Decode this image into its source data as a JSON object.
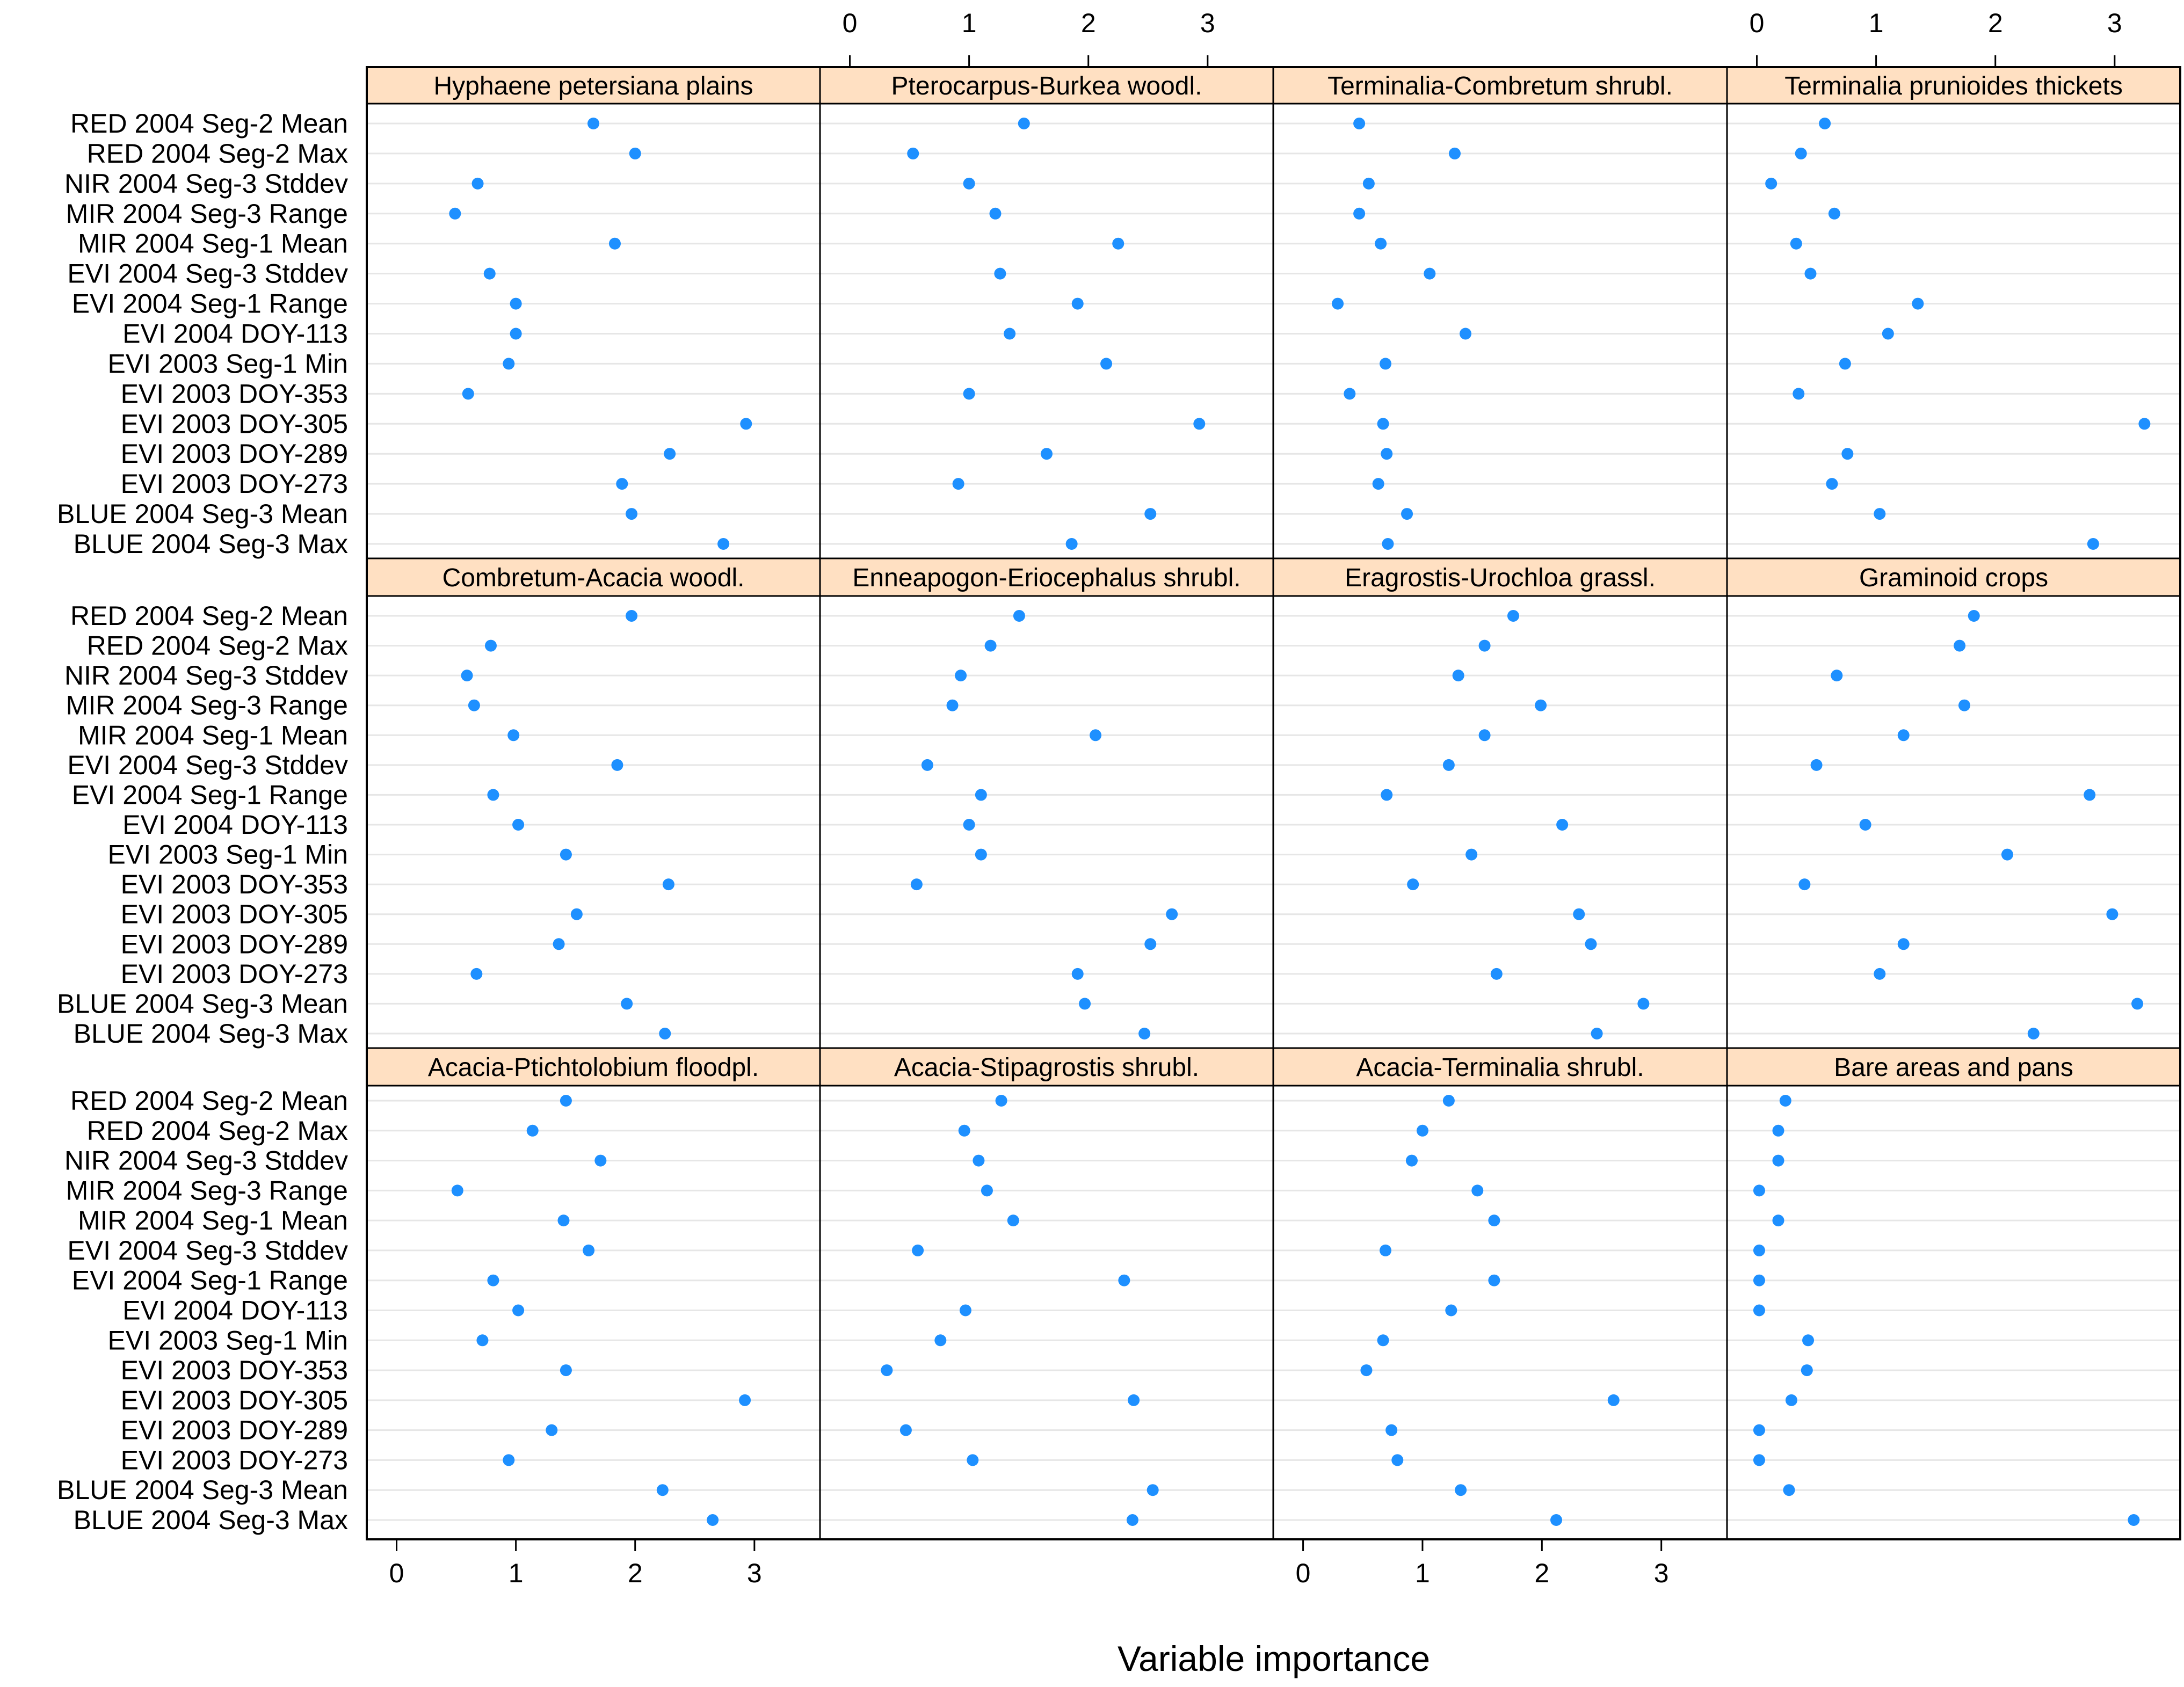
{
  "chart_data": {
    "type": "scatter",
    "subtype": "dotplot-lattice",
    "xlabel": "Variable importance",
    "ylabel": "",
    "xlim": [
      -0.25,
      3.55
    ],
    "x_ticks": [
      0,
      1,
      2,
      3
    ],
    "x_tick_labels": [
      "0",
      "1",
      "2",
      "3"
    ],
    "grid": "horizontal",
    "layout": {
      "rows": 3,
      "cols": 4
    },
    "colors": {
      "point": "#1E90FF",
      "strip": "#FFE0C2",
      "grid": "#E6E6E6",
      "frame": "#000000",
      "tick_text": "#000000"
    },
    "variables": [
      "RED 2004 Seg-2 Mean",
      "RED 2004 Seg-2 Max",
      "NIR 2004 Seg-3 Stddev",
      "MIR 2004 Seg-3 Range",
      "MIR 2004 Seg-1 Mean",
      "EVI 2004 Seg-3 Stddev",
      "EVI 2004 Seg-1 Range",
      "EVI 2004 DOY-113",
      "EVI 2003 Seg-1 Min",
      "EVI 2003 DOY-353",
      "EVI 2003 DOY-305",
      "EVI 2003 DOY-289",
      "EVI 2003 DOY-273",
      "BLUE 2004 Seg-3 Mean",
      "BLUE 2004 Seg-3 Max"
    ],
    "panels": [
      {
        "name": "Hyphaene petersiana plains",
        "values": [
          1.65,
          2.0,
          0.68,
          0.49,
          1.83,
          0.78,
          1.0,
          1.0,
          0.94,
          0.6,
          2.93,
          2.29,
          1.89,
          1.97,
          2.74
        ]
      },
      {
        "name": "Pterocarpus-Burkea woodl.",
        "values": [
          1.46,
          0.53,
          1.0,
          1.22,
          2.25,
          1.26,
          1.91,
          1.34,
          2.15,
          1.0,
          2.93,
          1.65,
          0.91,
          2.52,
          1.86
        ]
      },
      {
        "name": "Terminalia-Combretum shrubl.",
        "values": [
          0.47,
          1.27,
          0.55,
          0.47,
          0.65,
          1.06,
          0.29,
          1.36,
          0.69,
          0.39,
          0.67,
          0.7,
          0.63,
          0.87,
          0.71
        ]
      },
      {
        "name": "Terminalia prunioides thickets",
        "values": [
          0.57,
          0.37,
          0.12,
          0.65,
          0.33,
          0.45,
          1.35,
          1.1,
          0.74,
          0.35,
          3.25,
          0.76,
          0.63,
          1.03,
          2.82
        ]
      },
      {
        "name": "Combretum-Acacia woodl.",
        "values": [
          1.97,
          0.79,
          0.59,
          0.65,
          0.98,
          1.85,
          0.81,
          1.02,
          1.42,
          2.28,
          1.51,
          1.36,
          0.67,
          1.93,
          2.25
        ]
      },
      {
        "name": "Enneapogon-Eriocephalus shrubl.",
        "values": [
          1.42,
          1.18,
          0.93,
          0.86,
          2.06,
          0.65,
          1.1,
          1.0,
          1.1,
          0.56,
          2.7,
          2.52,
          1.91,
          1.97,
          2.47
        ]
      },
      {
        "name": "Eragrostis-Urochloa grassl.",
        "values": [
          1.76,
          1.52,
          1.3,
          1.99,
          1.52,
          1.22,
          0.7,
          2.17,
          1.41,
          0.92,
          2.31,
          2.41,
          1.62,
          2.85,
          2.46
        ]
      },
      {
        "name": "Graminoid crops",
        "values": [
          1.82,
          1.7,
          0.67,
          1.74,
          1.23,
          0.5,
          2.79,
          0.91,
          2.1,
          0.4,
          2.98,
          1.23,
          1.03,
          3.19,
          2.32
        ]
      },
      {
        "name": "Acacia-Ptichtolobium floodpl.",
        "values": [
          1.42,
          1.14,
          1.71,
          0.51,
          1.4,
          1.61,
          0.81,
          1.02,
          0.72,
          1.42,
          2.92,
          1.3,
          0.94,
          2.23,
          2.65
        ]
      },
      {
        "name": "Acacia-Stipagrostis shrubl.",
        "values": [
          1.27,
          0.96,
          1.08,
          1.15,
          1.37,
          0.57,
          2.3,
          0.97,
          0.76,
          0.31,
          2.38,
          0.47,
          1.03,
          2.54,
          2.37
        ]
      },
      {
        "name": "Acacia-Terminalia shrubl.",
        "values": [
          1.22,
          1.0,
          0.91,
          1.46,
          1.6,
          0.69,
          1.6,
          1.24,
          0.67,
          0.53,
          2.6,
          0.74,
          0.79,
          1.32,
          2.12
        ]
      },
      {
        "name": "Bare areas and pans",
        "values": [
          0.24,
          0.18,
          0.18,
          0.02,
          0.18,
          0.02,
          0.02,
          0.02,
          0.43,
          0.42,
          0.29,
          0.02,
          0.02,
          0.27,
          3.16
        ]
      }
    ]
  }
}
